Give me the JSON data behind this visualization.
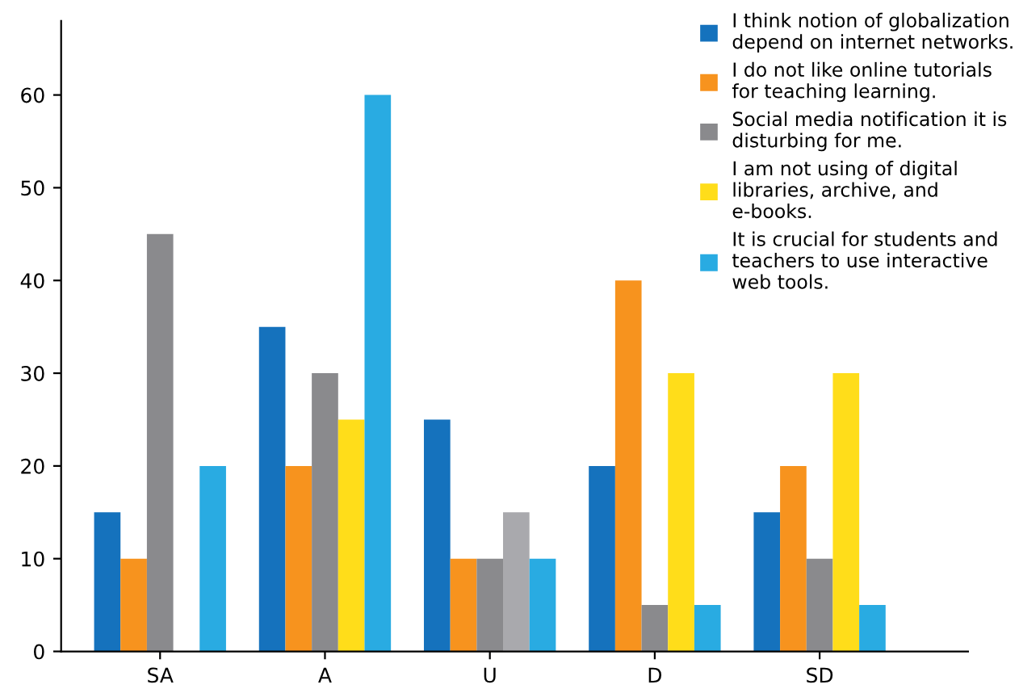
{
  "chart_data": {
    "type": "bar",
    "categories": [
      "SA",
      "A",
      "U",
      "D",
      "SD"
    ],
    "series": [
      {
        "name": "I think notion of globalization\ndepend on internet networks.",
        "color": "#1572bd",
        "values": [
          15,
          35,
          25,
          20,
          15
        ]
      },
      {
        "name": "I do not like online tutorials\nfor teaching learning.",
        "color": "#f7931e",
        "values": [
          10,
          20,
          10,
          40,
          20
        ]
      },
      {
        "name": "Social media notification it is\ndisturbing for me.",
        "color": "#8a8a8d",
        "values": [
          45,
          30,
          10,
          5,
          10
        ]
      },
      {
        "name": "I am not using of digital\nlibraries, archive, and\ne-books.",
        "color": "#ffdd1a",
        "colors": [
          "#ffdd1a",
          "#ffdd1a",
          "#a9a9ad",
          "#ffdd1a",
          "#ffdd1a"
        ],
        "values": [
          0,
          25,
          15,
          30,
          30
        ]
      },
      {
        "name": "It is crucial for students and\nteachers to use interactive\nweb tools.",
        "color": "#29abe2",
        "values": [
          20,
          60,
          10,
          5,
          5
        ]
      }
    ],
    "ylim": [
      0,
      68
    ],
    "yticks": [
      0,
      10,
      20,
      30,
      40,
      50,
      60
    ],
    "grid": false,
    "legend": "top right"
  }
}
